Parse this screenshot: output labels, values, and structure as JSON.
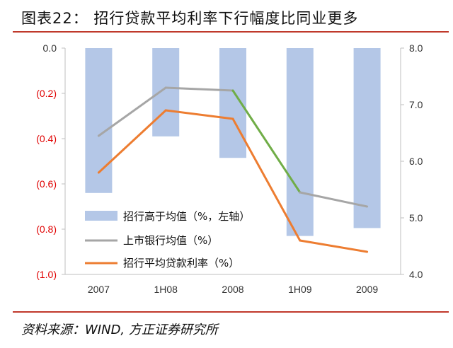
{
  "title": "图表22：   招行贷款平均利率下行幅度比同业更多",
  "source": "资料来源：WIND, 方正证券研究所",
  "colors": {
    "bar": "#b4c7e7",
    "peer_line": "#a6a6a6",
    "peer_line_highlight": "#70ad47",
    "cmb_line": "#ed7d31",
    "red_rule": "#c0392b",
    "negative_tick": "#e00000"
  },
  "chart_data": {
    "type": "bar",
    "categories": [
      "2007",
      "1H08",
      "2008",
      "1H09",
      "2009"
    ],
    "left_axis": {
      "ylim": [
        -1.0,
        0.0
      ],
      "ticks": [
        0.0,
        -0.2,
        -0.4,
        -0.6,
        -0.8,
        -1.0
      ],
      "tick_labels": [
        "0.0",
        "(0.2)",
        "(0.4)",
        "(0.6)",
        "(0.8)",
        "(1.0)"
      ]
    },
    "right_axis": {
      "ylim": [
        4.0,
        8.0
      ],
      "ticks": [
        8.0,
        7.0,
        6.0,
        5.0,
        4.0
      ],
      "tick_labels": [
        "8.0",
        "7.0",
        "6.0",
        "5.0",
        "4.0"
      ]
    },
    "series": [
      {
        "name": "招行高于均值（%，左轴）",
        "kind": "bar",
        "axis": "left",
        "values": [
          -0.64,
          -0.39,
          -0.485,
          -0.83,
          -0.795
        ]
      },
      {
        "name": "上市银行均值（%）",
        "kind": "line",
        "axis": "right",
        "values": [
          6.45,
          7.3,
          7.25,
          5.45,
          5.2
        ]
      },
      {
        "name": "招行平均贷款利率（%）",
        "kind": "line",
        "axis": "right",
        "values": [
          5.8,
          6.9,
          6.75,
          4.6,
          4.4
        ]
      }
    ],
    "legend": "inside-center-bottom",
    "grid": false
  }
}
